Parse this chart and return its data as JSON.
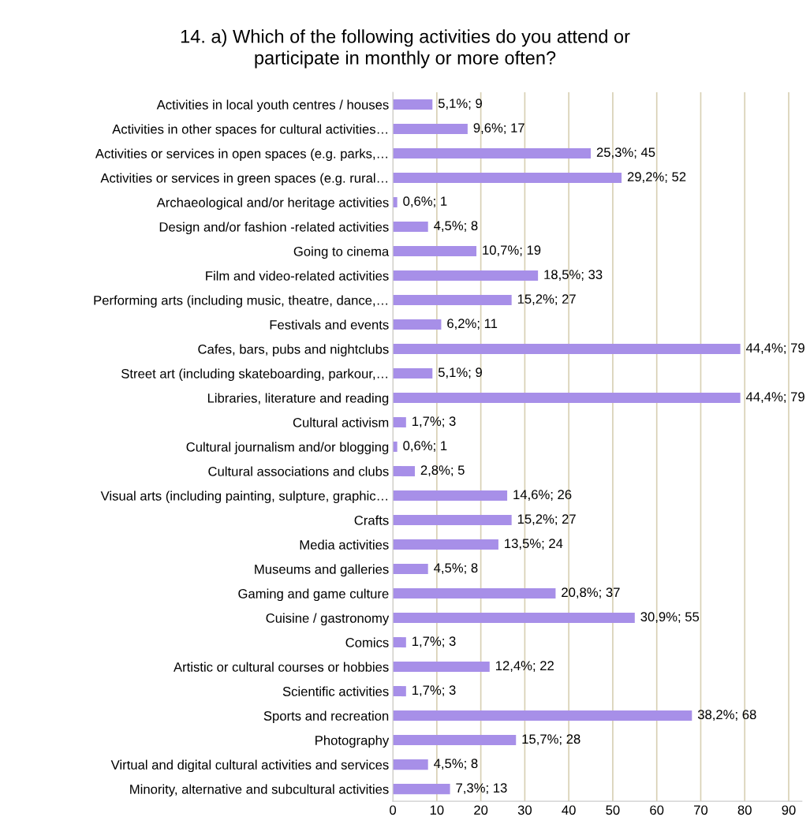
{
  "chart_data": {
    "type": "bar",
    "orientation": "horizontal",
    "title": "14. a) Which of the following activities do you attend or\nparticipate in monthly or more often?",
    "categories": [
      "Activities in local youth centres / houses",
      "Activities in other spaces for cultural activities…",
      "Activities or services in open spaces (e.g. parks,…",
      "Activities or services in green spaces (e.g. rural…",
      "Archaeological and/or heritage activities",
      "Design and/or fashion -related activities",
      "Going to cinema",
      "Film and video-related activities",
      "Performing arts (including music, theatre, dance,…",
      "Festivals and events",
      "Cafes, bars, pubs and nightclubs",
      "Street art (including skateboarding, parkour,…",
      "Libraries, literature and reading",
      "Cultural activism",
      "Cultural journalism and/or blogging",
      "Cultural associations and clubs",
      "Visual arts (including painting, sulpture, graphic…",
      "Crafts",
      "Media activities",
      "Museums and galleries",
      "Gaming and game culture",
      "Cuisine / gastronomy",
      "Comics",
      "Artistic or cultural courses or hobbies",
      "Scientific activities",
      "Sports and recreation",
      "Photography",
      "Virtual and digital cultural activities and services",
      "Minority, alternative and subcultural activities"
    ],
    "values": [
      9,
      17,
      45,
      52,
      1,
      8,
      19,
      33,
      27,
      11,
      79,
      9,
      79,
      3,
      1,
      5,
      26,
      27,
      24,
      8,
      37,
      55,
      3,
      22,
      3,
      68,
      28,
      8,
      13
    ],
    "value_labels": [
      "5,1%; 9",
      "9,6%; 17",
      "25,3%; 45",
      "29,2%; 52",
      "0,6%; 1",
      "4,5%; 8",
      "10,7%; 19",
      "18,5%; 33",
      "15,2%; 27",
      "6,2%; 11",
      "44,4%; 79",
      "5,1%; 9",
      "44,4%; 79",
      "1,7%; 3",
      "0,6%; 1",
      "2,8%; 5",
      "14,6%; 26",
      "15,2%; 27",
      "13,5%; 24",
      "4,5%; 8",
      "20,8%; 37",
      "30,9%; 55",
      "1,7%; 3",
      "12,4%; 22",
      "1,7%; 3",
      "38,2%; 68",
      "15,7%; 28",
      "4,5%; 8",
      "7,3%; 13"
    ],
    "color": "#a78fe8",
    "xlim": [
      0,
      93
    ],
    "xticks": [
      0,
      10,
      20,
      30,
      40,
      50,
      60,
      70,
      80,
      90
    ],
    "grid": "x",
    "legend": false
  }
}
